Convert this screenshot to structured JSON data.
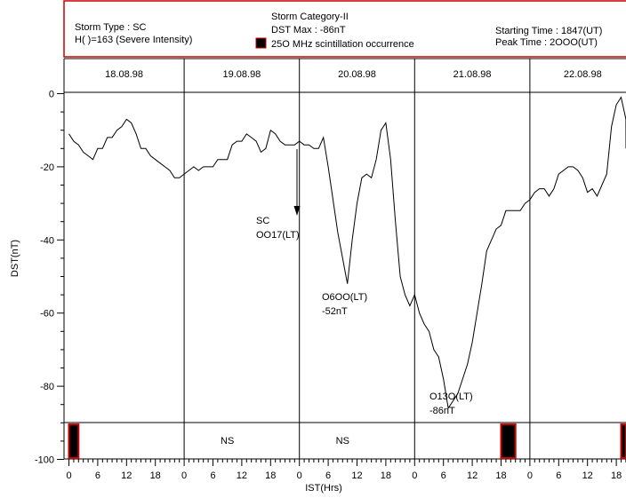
{
  "header": {
    "storm_type": "Storm Type : SC",
    "h_index": "H(   )=163 (Severe Intensity)",
    "category": "Storm Category-II",
    "dst_max": "DST Max : -86nT",
    "legend_label": "25O MHz scintillation occurrence",
    "starting_time": "Starting Time : 1847(UT)",
    "peak_time": "Peak Time    : 2OOO(UT)"
  },
  "chart_data": {
    "type": "line",
    "xlabel": "IST(Hrs)",
    "ylabel": "DST(nT)",
    "ylim": [
      -100,
      10
    ],
    "xlim": [
      -1,
      118
    ],
    "y_ticks": [
      0,
      -20,
      -40,
      -60,
      -80,
      -100
    ],
    "x_tick_labels": [
      "0",
      "6",
      "12",
      "18",
      "0",
      "6",
      "12",
      "18",
      "0",
      "6",
      "12",
      "18",
      "0",
      "6",
      "12",
      "18",
      "0",
      "6",
      "12",
      "18"
    ],
    "days": [
      "18.08.98",
      "19.08.98",
      "20.08.98",
      "21.08.98",
      "22.08.98"
    ],
    "day_boundaries_hours": [
      24,
      48,
      72,
      96
    ],
    "series": [
      {
        "x": [
          0,
          1,
          2,
          3,
          4,
          5,
          6,
          7,
          8,
          9,
          10,
          11,
          12,
          13,
          14,
          15,
          16,
          17,
          18,
          19,
          20,
          21,
          22,
          23,
          24,
          25,
          26,
          27,
          28,
          29,
          30,
          31,
          32,
          33,
          34,
          35,
          36,
          37,
          38,
          39,
          40,
          41,
          42,
          43,
          44,
          45,
          46,
          47,
          48,
          49,
          50,
          51,
          52,
          53,
          54,
          55,
          56,
          57,
          58,
          59,
          60,
          61,
          62,
          63,
          64,
          65,
          66,
          67,
          68,
          69,
          70,
          71,
          72,
          73,
          74,
          75,
          76,
          77,
          78,
          79,
          80,
          81,
          82,
          83,
          84,
          85,
          86,
          87,
          88,
          89,
          90,
          91,
          92,
          93,
          94,
          95,
          96,
          97,
          98,
          99,
          100,
          101,
          102,
          103,
          104,
          105,
          106,
          107,
          108,
          109,
          110,
          111,
          112,
          113,
          114,
          115,
          116,
          117
        ],
        "values": [
          -11,
          -13,
          -14,
          -16,
          -17,
          -18,
          -15,
          -15,
          -12,
          -12,
          -10,
          -9,
          -7,
          -8,
          -11,
          -15,
          -15,
          -17,
          -18,
          -19,
          -20,
          -21,
          -23,
          -23,
          -22,
          -21,
          -20,
          -21,
          -20,
          -20,
          -20,
          -18,
          -18,
          -18,
          -14,
          -13,
          -13,
          -11,
          -12,
          -13,
          -16,
          -15,
          -10,
          -11,
          -13,
          -14,
          -14,
          -14,
          -13,
          -14,
          -14,
          -15,
          -15,
          -12,
          -20,
          -29,
          -38,
          -45,
          -52,
          -40,
          -30,
          -23,
          -22,
          -23,
          -18,
          -10,
          -8,
          -18,
          -35,
          -50,
          -55,
          -58,
          -55,
          -60,
          -63,
          -65,
          -70,
          -72,
          -78,
          -86,
          -84,
          -82,
          -78,
          -74,
          -68,
          -60,
          -52,
          -43,
          -40,
          -37,
          -36,
          -32,
          -32,
          -32,
          -32,
          -30,
          -29,
          -27,
          -26,
          -26,
          -28,
          -26,
          -22,
          -21,
          -20,
          -20,
          -21,
          -23,
          -27,
          -26,
          -28,
          -25,
          -22,
          -9,
          -3,
          -1,
          -7,
          -15
        ]
      }
    ],
    "annotations": [
      {
        "text": "SC",
        "x": 46,
        "y": -34
      },
      {
        "text": "OO17(LT)",
        "x": 46,
        "y": -38
      },
      {
        "text": "O6OO(LT)",
        "x": 54,
        "y": -55
      },
      {
        "text": "-52nT",
        "x": 54,
        "y": -59
      },
      {
        "text": "O13O(LT)",
        "x": 76,
        "y": -84
      },
      {
        "text": "-86nT",
        "x": 76,
        "y": -88
      }
    ],
    "scintillation_strip": {
      "ns_labels": [
        {
          "text": "NS",
          "x": 33
        },
        {
          "text": "NS",
          "x": 57
        }
      ],
      "occurrence_bars_hours": [
        [
          0,
          2
        ],
        [
          90,
          93
        ],
        [
          115,
          118
        ]
      ]
    },
    "colors": {
      "line": "#000000",
      "frame": "#cc0000",
      "bar_fill": "#000000",
      "bar_stroke": "#cc0000"
    }
  }
}
